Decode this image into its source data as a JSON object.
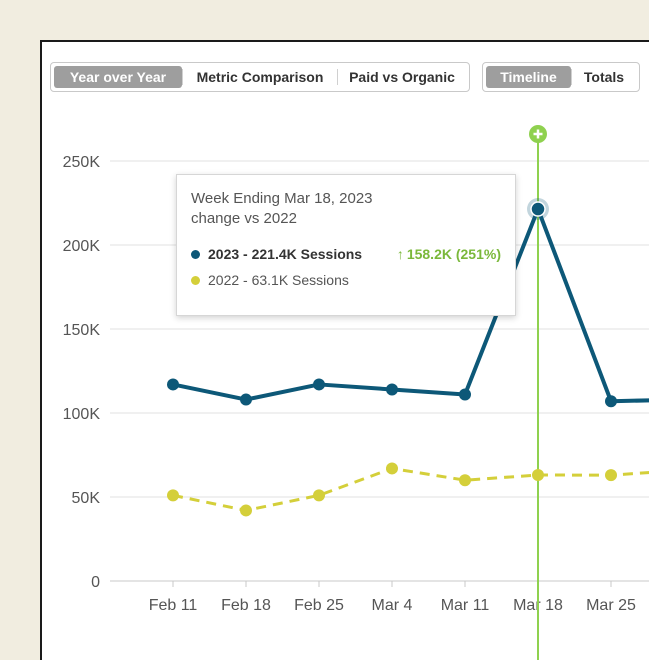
{
  "controls": {
    "view_tabs": [
      {
        "label": "Year over Year",
        "active": true
      },
      {
        "label": "Metric Comparison",
        "active": false
      },
      {
        "label": "Paid vs Organic",
        "active": false
      }
    ],
    "mode_tabs": [
      {
        "label": "Timeline",
        "active": true
      },
      {
        "label": "Totals",
        "active": false
      }
    ]
  },
  "tooltip": {
    "title": "Week Ending Mar 18, 2023",
    "subtitle": "change vs 2022",
    "row1": "2023 - 221.4K Sessions",
    "row1_change": "158.2K (251%)",
    "row2": "2022 - 63.1K Sessions",
    "change_color": "#7ab83a"
  },
  "chart_data": {
    "type": "line",
    "categories": [
      "Feb 11",
      "Feb 18",
      "Feb 25",
      "Mar 4",
      "Mar 11",
      "Mar 18",
      "Mar 25",
      ""
    ],
    "y_ticks": [
      "0",
      "50K",
      "100K",
      "150K",
      "200K",
      "250K"
    ],
    "ylim": [
      0,
      250000
    ],
    "series": [
      {
        "name": "2023",
        "color": "#0d5878",
        "dash": false,
        "values": [
          117000,
          108000,
          117000,
          114000,
          111000,
          221400,
          107000,
          108000
        ]
      },
      {
        "name": "2022",
        "color": "#d4cf3a",
        "dash": true,
        "values": [
          51000,
          42000,
          51000,
          67000,
          60000,
          63100,
          63000,
          66000
        ]
      }
    ],
    "highlight_index": 5,
    "highlight_color": "#8fd14f",
    "grid": true
  }
}
